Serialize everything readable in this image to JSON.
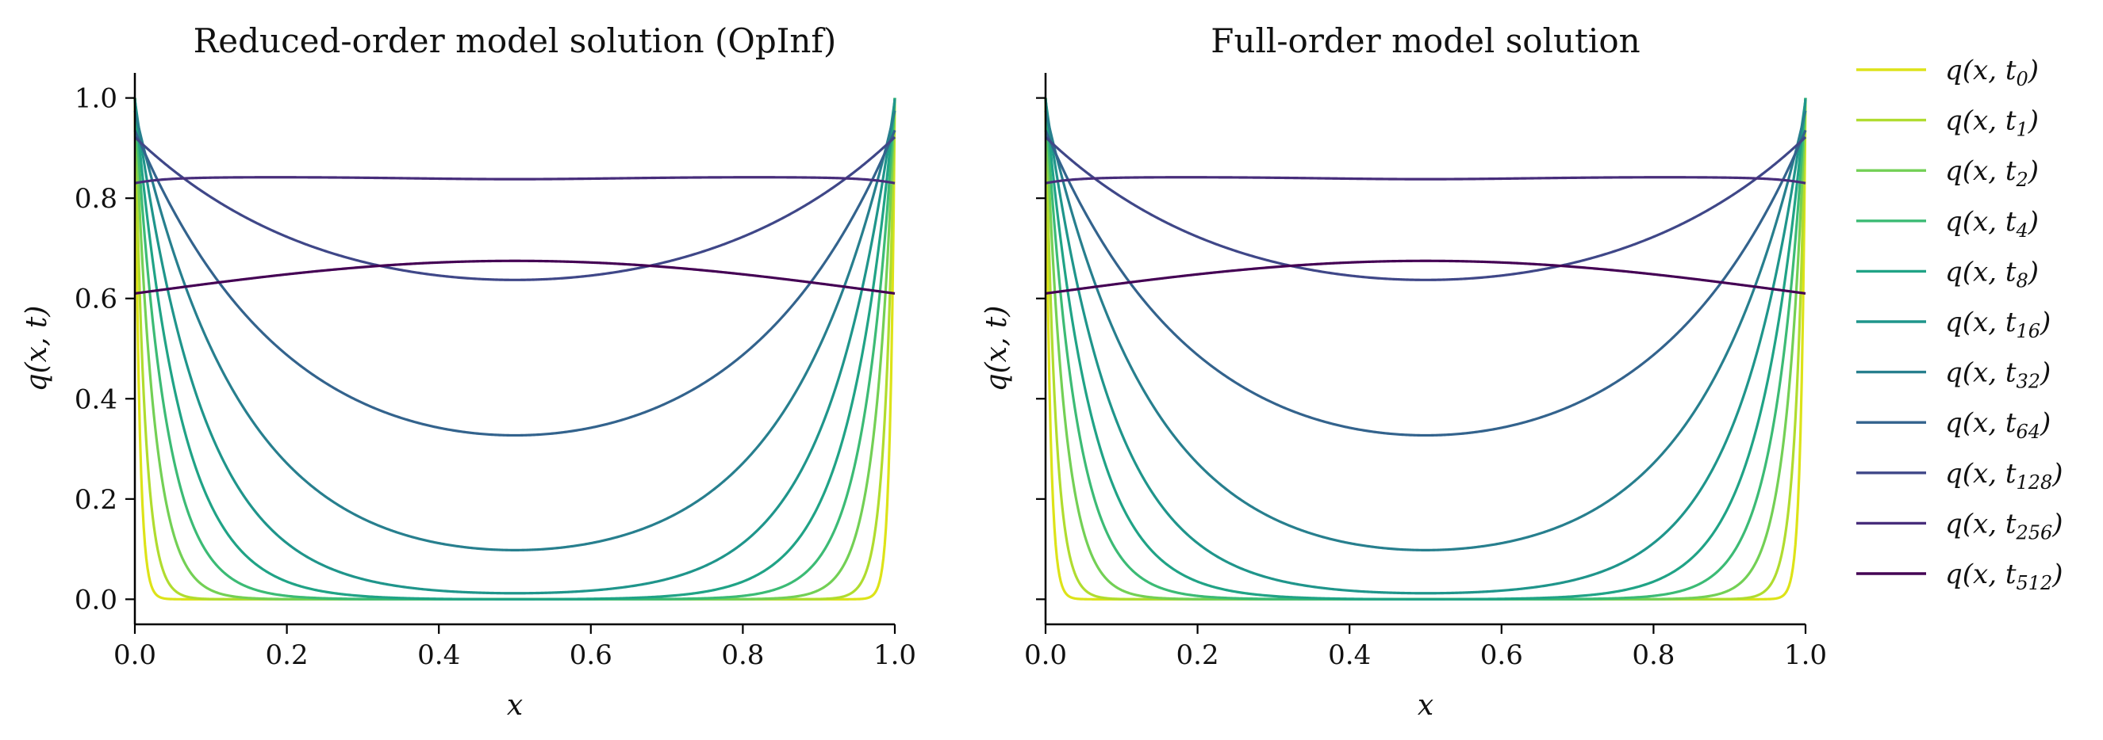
{
  "chart_data": [
    {
      "type": "line",
      "title": "Reduced-order model solution (OpInf)",
      "xlabel": "x",
      "ylabel": "q(x, t)",
      "xlim": [
        0.0,
        1.0
      ],
      "ylim": [
        -0.05,
        1.05
      ],
      "xticks": [
        "0.0",
        "0.2",
        "0.4",
        "0.6",
        "0.8",
        "1.0"
      ],
      "yticks": [
        "0.0",
        "0.2",
        "0.4",
        "0.6",
        "0.8",
        "1.0"
      ],
      "show_yticklabels": true,
      "series": [
        {
          "name": "q(x, t0)",
          "boundary": 1.0,
          "center": 0.0,
          "width": 0.006,
          "color": "#dde318"
        },
        {
          "name": "q(x, t1)",
          "boundary": 1.0,
          "center": 0.0,
          "width": 0.013,
          "color": "#b0dc2f"
        },
        {
          "name": "q(x, t2)",
          "boundary": 1.0,
          "center": 0.0,
          "width": 0.025,
          "color": "#73d055"
        },
        {
          "name": "q(x, t4)",
          "boundary": 1.0,
          "center": 0.0,
          "width": 0.04,
          "color": "#3cbb75"
        },
        {
          "name": "q(x, t8)",
          "boundary": 1.0,
          "center": 0.0,
          "width": 0.06,
          "color": "#20a386"
        },
        {
          "name": "q(x, t16)",
          "boundary": 1.0,
          "center": 0.012,
          "width": 0.09,
          "color": "#1f958b"
        },
        {
          "name": "q(x, t32)",
          "boundary": 1.0,
          "center": 0.098,
          "width": 0.14,
          "color": "#277f8e"
        },
        {
          "name": "q(x, t64)",
          "boundary": 0.99,
          "center": 0.327,
          "width": 0.2,
          "color": "#33638d"
        },
        {
          "name": "q(x, t128)",
          "boundary": 0.975,
          "center": 0.637,
          "width": 0.27,
          "color": "#3f4788"
        },
        {
          "name": "q(x, t256)",
          "boundary": 0.83,
          "center": 0.838,
          "edge_peak": 0.842,
          "color": "#472d7b"
        },
        {
          "name": "q(x, t512)",
          "boundary": 0.61,
          "center": 0.675,
          "color": "#440154"
        }
      ]
    },
    {
      "type": "line",
      "title": "Full-order model solution",
      "xlabel": "x",
      "ylabel": "q(x, t)",
      "xlim": [
        0.0,
        1.0
      ],
      "ylim": [
        -0.05,
        1.05
      ],
      "xticks": [
        "0.0",
        "0.2",
        "0.4",
        "0.6",
        "0.8",
        "1.0"
      ],
      "yticks": [
        "0.0",
        "0.2",
        "0.4",
        "0.6",
        "0.8",
        "1.0"
      ],
      "show_yticklabels": false,
      "series_same_as_first": true
    }
  ],
  "legend": {
    "placement": "right",
    "entries": [
      {
        "base": "q(x, t",
        "sub": "0",
        "close": ")"
      },
      {
        "base": "q(x, t",
        "sub": "1",
        "close": ")"
      },
      {
        "base": "q(x, t",
        "sub": "2",
        "close": ")"
      },
      {
        "base": "q(x, t",
        "sub": "4",
        "close": ")"
      },
      {
        "base": "q(x, t",
        "sub": "8",
        "close": ")"
      },
      {
        "base": "q(x, t",
        "sub": "16",
        "close": ")"
      },
      {
        "base": "q(x, t",
        "sub": "32",
        "close": ")"
      },
      {
        "base": "q(x, t",
        "sub": "64",
        "close": ")"
      },
      {
        "base": "q(x, t",
        "sub": "128",
        "close": ")"
      },
      {
        "base": "q(x, t",
        "sub": "256",
        "close": ")"
      },
      {
        "base": "q(x, t",
        "sub": "512",
        "close": ")"
      }
    ]
  }
}
